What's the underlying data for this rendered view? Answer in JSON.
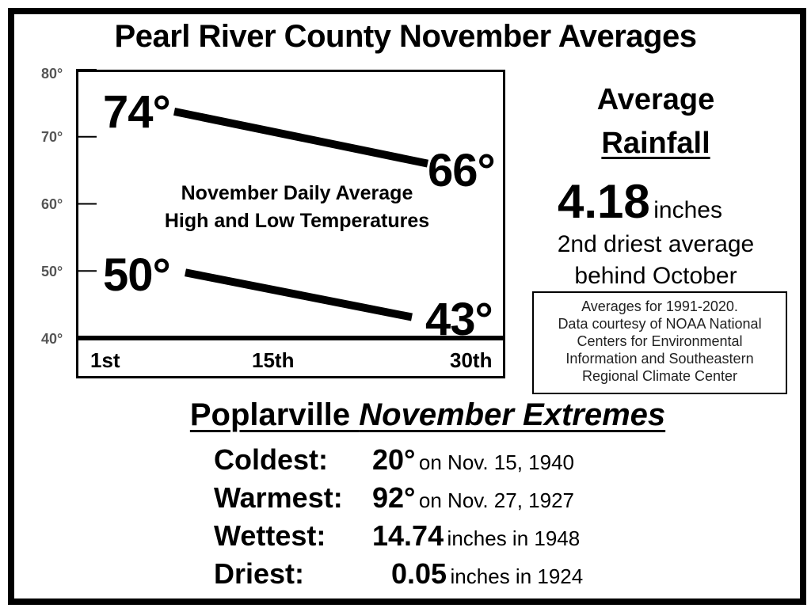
{
  "title": "Pearl River County November Averages",
  "chart_data": {
    "type": "line",
    "title": "",
    "subtitle_lines": [
      "November Daily Average",
      "High and Low Temperatures"
    ],
    "xlabel": "",
    "ylabel": "",
    "x_tick_labels": [
      "1st",
      "15th",
      "30th"
    ],
    "y_tick_labels": [
      "80°",
      "70°",
      "60°",
      "50°",
      "40°"
    ],
    "x": [
      1,
      30
    ],
    "ylim": [
      40,
      80
    ],
    "xlim": [
      1,
      30
    ],
    "grid": false,
    "legend": "none",
    "series": [
      {
        "values": [
          74,
          66
        ],
        "labels": [
          "74°",
          "66°"
        ]
      },
      {
        "values": [
          50,
          43
        ],
        "labels": [
          "50°",
          "43°"
        ]
      }
    ]
  },
  "rainfall": {
    "heading_line1": "Average",
    "heading_line2": "Rainfall",
    "value": "4.18",
    "unit": "inches",
    "note_line1": "2nd driest average",
    "note_line2": "behind October"
  },
  "source": {
    "lines": [
      "Averages for 1991-2020.",
      "Data courtesy of NOAA National",
      "Centers for Environmental",
      "Information and Southeastern",
      "Regional Climate Center"
    ]
  },
  "extremes": {
    "title_plain": "Poplarville ",
    "title_italic": "November Extremes",
    "rows": [
      {
        "label": "Coldest:",
        "value": "20°",
        "detail": "on Nov. 15, 1940"
      },
      {
        "label": "Warmest:",
        "value": "92°",
        "detail": "on Nov. 27, 1927"
      },
      {
        "label": "Wettest:",
        "value": "14.74",
        "detail": "inches in 1948"
      },
      {
        "label": "Driest:",
        "value": "0.05",
        "detail": "inches in 1924"
      }
    ]
  }
}
